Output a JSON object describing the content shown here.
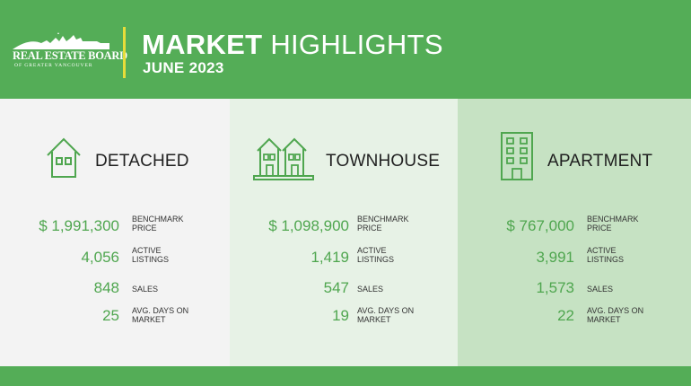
{
  "header": {
    "logo": {
      "line1": "REAL ESTATE BOARD",
      "line2": "OF GREATER VANCOUVER"
    },
    "title_strong": "MARKET",
    "title_light": "HIGHLIGHTS",
    "subtitle": "JUNE 2023"
  },
  "panels": [
    {
      "name": "DETACHED",
      "icon": "house-icon",
      "metrics": [
        {
          "value": "$ 1,991,300",
          "label": "BENCHMARK\nPRICE"
        },
        {
          "value": "4,056",
          "label": "ACTIVE\nLISTINGS"
        },
        {
          "value": "848",
          "label": "SALES"
        },
        {
          "value": "25",
          "label": "AVG. DAYS ON\nMARKET"
        }
      ]
    },
    {
      "name": "TOWNHOUSE",
      "icon": "townhouse-icon",
      "metrics": [
        {
          "value": "$ 1,098,900",
          "label": "BENCHMARK\nPRICE"
        },
        {
          "value": "1,419",
          "label": "ACTIVE\nLISTINGS"
        },
        {
          "value": "547",
          "label": "SALES"
        },
        {
          "value": "19",
          "label": "AVG. DAYS ON\nMARKET"
        }
      ]
    },
    {
      "name": "APARTMENT",
      "icon": "apartment-icon",
      "metrics": [
        {
          "value": "$ 767,000",
          "label": "BENCHMARK\nPRICE"
        },
        {
          "value": "3,991",
          "label": "ACTIVE\nLISTINGS"
        },
        {
          "value": "1,573",
          "label": "SALES"
        },
        {
          "value": "22",
          "label": "AVG. DAYS ON\nMARKET"
        }
      ]
    }
  ],
  "colors": {
    "brand_green": "#54ad57",
    "value_green": "#4fa64f",
    "accent_yellow": "#e6dd3a"
  }
}
